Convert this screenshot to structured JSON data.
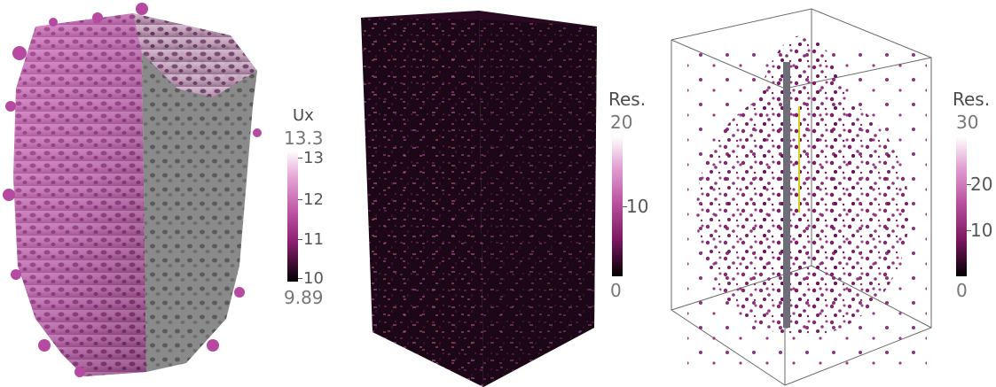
{
  "panels": [
    {
      "colorbar": {
        "title": "Ux",
        "range_max": "13.3",
        "range_min": "9.89",
        "ticks": [
          "13",
          "12",
          "11",
          "10"
        ]
      }
    },
    {
      "colorbar": {
        "title": "Res.",
        "range_max": "20",
        "range_min": "0",
        "ticks": [
          "10"
        ]
      }
    },
    {
      "colorbar": {
        "title": "Res.",
        "range_max": "30",
        "range_min": "0",
        "ticks": [
          "20",
          "10"
        ]
      }
    }
  ],
  "colors": {
    "colormap_high": "#ffffff",
    "colormap_mid": "#a0307f",
    "colormap_low": "#000000",
    "bone_surface": "#b54aa0",
    "cut_face": "#7d7d7d",
    "residual_volume": "#2a0a1f"
  }
}
